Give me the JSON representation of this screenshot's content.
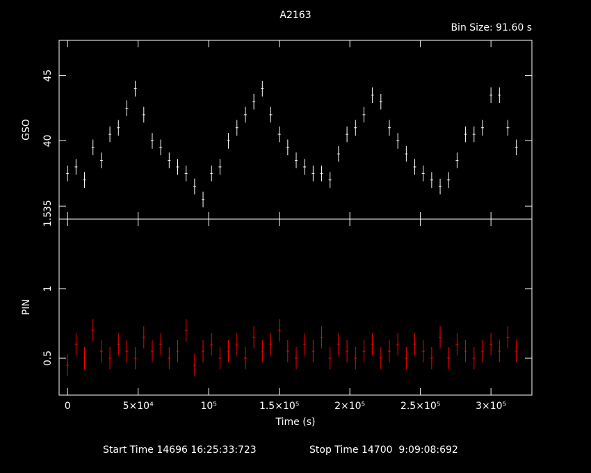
{
  "chart_data": {
    "type": "scatter",
    "title": "A2163",
    "subtitle": "Bin Size: 91.60 s",
    "xlabel": "Time (s)",
    "xlim": [
      -6000,
      329000
    ],
    "xticks": [
      0,
      {
        "value": 50000,
        "label": "5×10⁴"
      },
      {
        "value": 100000,
        "label": "10⁵"
      },
      {
        "value": 150000,
        "label": "1.5×10⁵"
      },
      {
        "value": 200000,
        "label": "2×10⁵"
      },
      {
        "value": 250000,
        "label": "2.5×10⁵"
      },
      {
        "value": 300000,
        "label": "3×10⁵"
      }
    ],
    "x": [
      0,
      6000,
      12000,
      18000,
      24000,
      30000,
      36000,
      42000,
      48000,
      54000,
      60000,
      66000,
      72000,
      78000,
      84000,
      90000,
      96000,
      102000,
      108000,
      114000,
      120000,
      126000,
      132000,
      138000,
      144000,
      150000,
      156000,
      162000,
      168000,
      174000,
      180000,
      186000,
      192000,
      198000,
      204000,
      210000,
      216000,
      222000,
      228000,
      234000,
      240000,
      246000,
      252000,
      258000,
      264000,
      270000,
      276000,
      282000,
      288000,
      294000,
      300000,
      306000,
      312000,
      318000
    ],
    "panels": [
      {
        "ylabel": "GSO",
        "ylim": [
          34,
          47.7
        ],
        "yticks": [
          35,
          40,
          45
        ],
        "color": "#ffffff",
        "error": 0.6,
        "values": [
          37.5,
          38,
          37,
          39.5,
          38.5,
          40.5,
          41,
          42.5,
          44,
          42,
          40,
          39.5,
          38.5,
          38,
          37.5,
          36.5,
          35.5,
          37.5,
          38,
          40,
          41,
          42,
          43,
          44,
          42,
          40.5,
          39.5,
          38.5,
          38,
          37.5,
          37.5,
          37,
          39,
          40.5,
          41,
          42,
          43.5,
          43,
          41,
          40,
          39,
          38,
          37.5,
          37,
          36.5,
          37,
          38.5,
          40.5,
          40.5,
          41,
          43.5,
          43.5,
          41,
          39.5
        ]
      },
      {
        "ylabel": "PIN",
        "ylim": [
          0.235,
          1.5
        ],
        "yticks": [
          0.5,
          1,
          1.5
        ],
        "color": "#ff0000",
        "error": 0.08,
        "values": [
          0.45,
          0.6,
          0.5,
          0.7,
          0.55,
          0.5,
          0.6,
          0.55,
          0.5,
          0.65,
          0.55,
          0.6,
          0.5,
          0.55,
          0.7,
          0.45,
          0.55,
          0.6,
          0.5,
          0.55,
          0.6,
          0.5,
          0.65,
          0.55,
          0.6,
          0.7,
          0.55,
          0.5,
          0.6,
          0.55,
          0.65,
          0.5,
          0.6,
          0.55,
          0.5,
          0.55,
          0.6,
          0.5,
          0.55,
          0.6,
          0.5,
          0.6,
          0.55,
          0.5,
          0.65,
          0.5,
          0.6,
          0.55,
          0.5,
          0.55,
          0.6,
          0.55,
          0.65,
          0.55
        ]
      }
    ],
    "footer": [
      "Start Time 14696 16:25:33:723",
      "Stop Time 14700  9:09:08:692"
    ]
  }
}
